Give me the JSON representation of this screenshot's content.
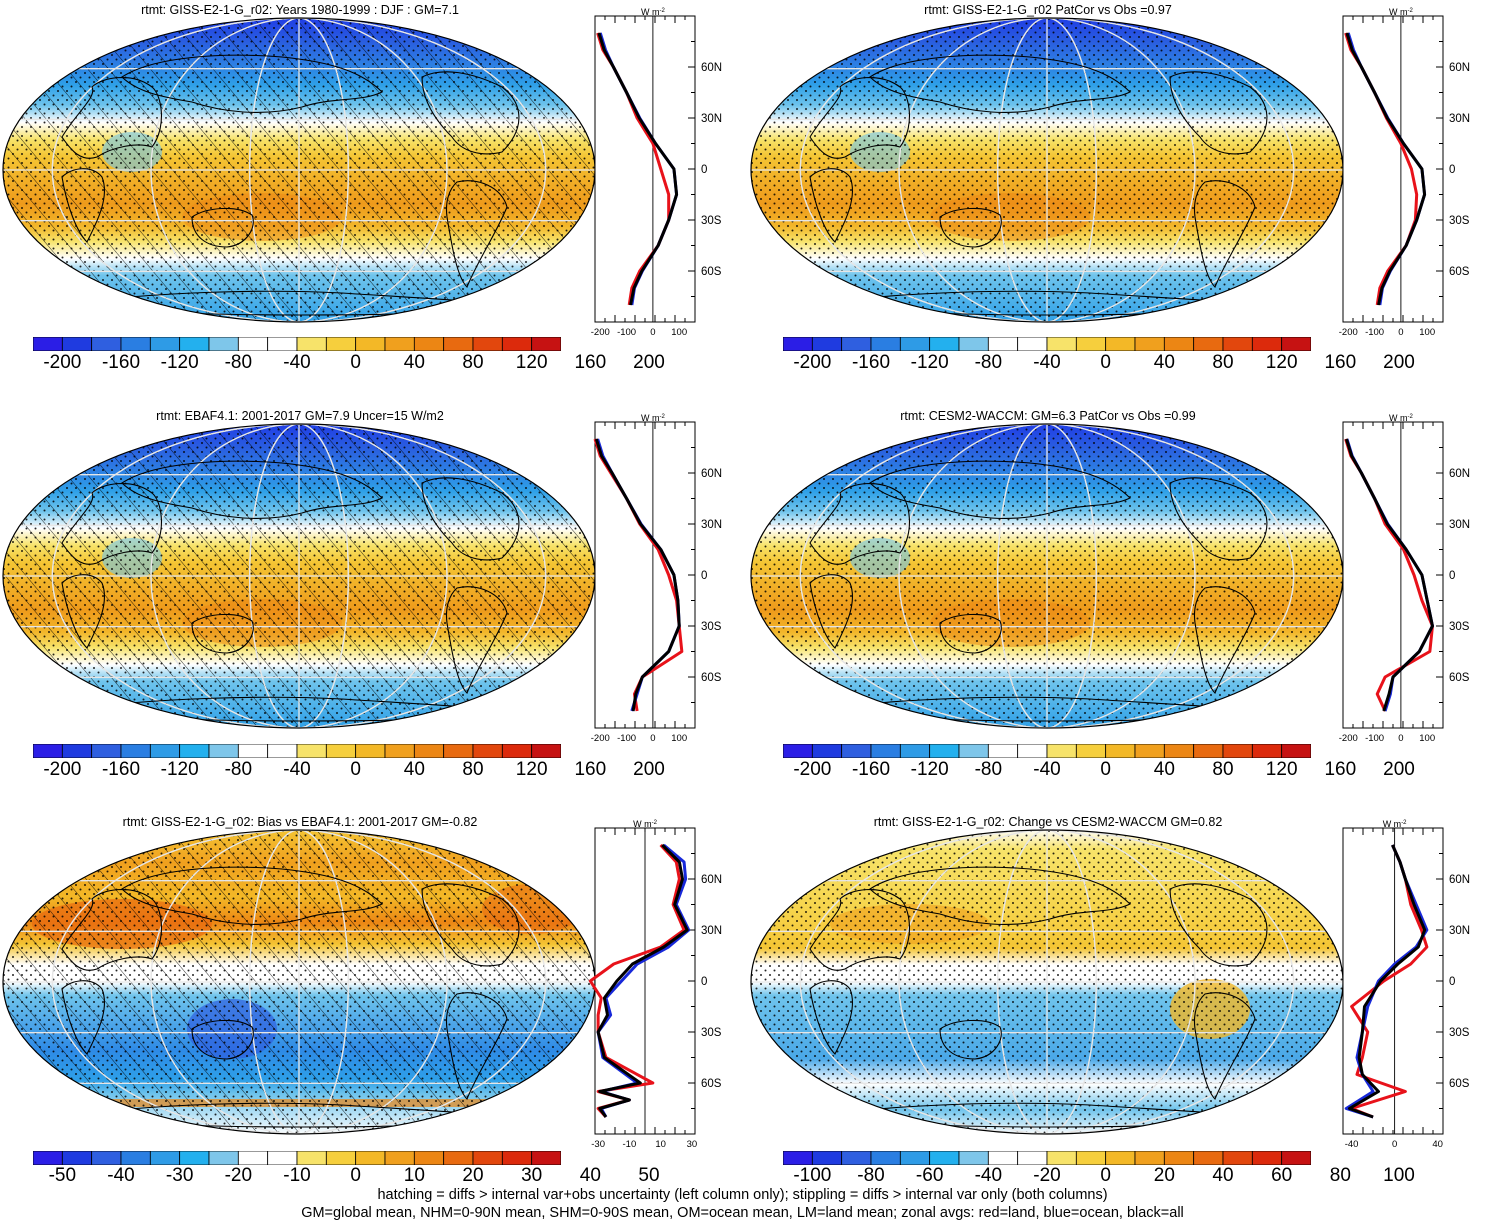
{
  "panels": [
    {
      "id": "p1",
      "title": "rtmt: GISS-E2-1-G_r02: Years 1980-1999 : DJF : GM=7.1",
      "map_kind": "clim",
      "hatching": true,
      "stipple": "dense",
      "profile_unit": "W m",
      "profile_xticks": [
        "-200",
        "-100",
        "0",
        "100"
      ],
      "profile_yticks": [
        "60N",
        "30N",
        "0",
        "30S",
        "60S"
      ],
      "colorbar_labels": [
        "-200",
        "-160",
        "-120",
        "-80",
        "-40",
        "0",
        "40",
        "80",
        "120",
        "160",
        "200"
      ],
      "colorbar_palette": "full"
    },
    {
      "id": "p2",
      "title": "rtmt: GISS-E2-1-G_r02 PatCor vs Obs =0.97",
      "map_kind": "clim",
      "hatching": false,
      "stipple": "dense",
      "profile_unit": "W m",
      "profile_xticks": [
        "-200",
        "-100",
        "0",
        "100"
      ],
      "profile_yticks": [
        "60N",
        "30N",
        "0",
        "30S",
        "60S"
      ],
      "colorbar_labels": [
        "-200",
        "-160",
        "-120",
        "-80",
        "-40",
        "0",
        "40",
        "80",
        "120",
        "160",
        "200"
      ],
      "colorbar_palette": "full"
    },
    {
      "id": "p3",
      "title": "rtmt: EBAF4.1: 2001-2017 GM=7.9 Uncer=15 W/m2",
      "map_kind": "clim",
      "hatching": true,
      "stipple": "dense",
      "profile_unit": "W m",
      "profile_xticks": [
        "-200",
        "-100",
        "0",
        "100"
      ],
      "profile_yticks": [
        "60N",
        "30N",
        "0",
        "30S",
        "60S"
      ],
      "colorbar_labels": [
        "-200",
        "-160",
        "-120",
        "-80",
        "-40",
        "0",
        "40",
        "80",
        "120",
        "160",
        "200"
      ],
      "colorbar_palette": "full"
    },
    {
      "id": "p4",
      "title": "rtmt: CESM2-WACCM: GM=6.3 PatCor vs Obs =0.99",
      "map_kind": "clim",
      "hatching": false,
      "stipple": "dense",
      "profile_unit": "W m",
      "profile_xticks": [
        "-200",
        "-100",
        "0",
        "100"
      ],
      "profile_yticks": [
        "60N",
        "30N",
        "0",
        "30S",
        "60S"
      ],
      "colorbar_labels": [
        "-200",
        "-160",
        "-120",
        "-80",
        "-40",
        "0",
        "40",
        "80",
        "120",
        "160",
        "200"
      ],
      "colorbar_palette": "full"
    },
    {
      "id": "p5",
      "title": "rtmt: GISS-E2-1-G_r02: Bias vs EBAF4.1: 2001-2017 GM=-0.82",
      "map_kind": "bias",
      "hatching": true,
      "stipple": "dense",
      "profile_unit": "W m",
      "profile_xticks": [
        "-30",
        "-10",
        "10",
        "30"
      ],
      "profile_yticks": [
        "60N",
        "30N",
        "0",
        "30S",
        "60S"
      ],
      "colorbar_labels": [
        "-50",
        "-40",
        "-30",
        "-20",
        "-10",
        "0",
        "10",
        "20",
        "30",
        "40",
        "50"
      ],
      "colorbar_palette": "full"
    },
    {
      "id": "p6",
      "title": "rtmt: GISS-E2-1-G_r02: Change vs CESM2-WACCM GM=0.82",
      "map_kind": "change",
      "hatching": false,
      "stipple": "dense",
      "profile_unit": "W m",
      "profile_xticks": [
        "-40",
        "0",
        "40"
      ],
      "profile_yticks": [
        "60N",
        "30N",
        "0",
        "30S",
        "60S"
      ],
      "colorbar_labels": [
        "-100",
        "-80",
        "-60",
        "-40",
        "-20",
        "0",
        "20",
        "40",
        "60",
        "80",
        "100"
      ],
      "colorbar_palette": "full"
    }
  ],
  "colorbar_colors": [
    "#2b1ee6",
    "#1f3be0",
    "#2f5fe0",
    "#2a7ee2",
    "#2e9be6",
    "#23b0ee",
    "#7ec6ea",
    "#ffffff",
    "#ffffff",
    "#f7e36a",
    "#f6cf3d",
    "#f3b827",
    "#f0a01e",
    "#ec8614",
    "#e86a10",
    "#e2470d",
    "#dc2a0c",
    "#c61212"
  ],
  "chart_data": [
    {
      "type": "heatmap",
      "title": "rtmt: GISS-E2-1-G_r02: Years 1980-1999 : DJF : GM=7.1",
      "colorbar_range": [
        -200,
        200
      ],
      "zonal_profile": {
        "lat": [
          80,
          70,
          60,
          45,
          30,
          15,
          0,
          -15,
          -30,
          -45,
          -60,
          -70,
          -80
        ],
        "series": [
          {
            "name": "red",
            "values": [
              -210,
              -190,
              -150,
              -100,
              -60,
              0,
              30,
              60,
              60,
              20,
              -50,
              -80,
              -90
            ]
          },
          {
            "name": "blue",
            "values": [
              -200,
              -180,
              -150,
              -100,
              -50,
              10,
              80,
              90,
              60,
              20,
              -40,
              -70,
              -80
            ]
          },
          {
            "name": "black",
            "values": [
              -205,
              -185,
              -150,
              -100,
              -52,
              10,
              80,
              90,
              60,
              20,
              -42,
              -72,
              -85
            ]
          }
        ]
      }
    },
    {
      "type": "heatmap",
      "title": "rtmt: GISS-E2-1-G_r02 PatCor vs Obs =0.97",
      "colorbar_range": [
        -200,
        200
      ],
      "zonal_profile": {
        "lat": [
          80,
          70,
          60,
          45,
          30,
          15,
          0,
          -15,
          -30,
          -45,
          -60,
          -70,
          -80
        ],
        "series": [
          {
            "name": "red",
            "values": [
              -210,
              -190,
              -150,
              -100,
              -55,
              0,
              40,
              60,
              55,
              20,
              -50,
              -80,
              -90
            ]
          },
          {
            "name": "blue",
            "values": [
              -200,
              -180,
              -150,
              -100,
              -50,
              10,
              80,
              90,
              60,
              20,
              -40,
              -70,
              -80
            ]
          },
          {
            "name": "black",
            "values": [
              -205,
              -185,
              -150,
              -100,
              -52,
              10,
              80,
              90,
              60,
              20,
              -42,
              -72,
              -85
            ]
          }
        ]
      }
    },
    {
      "type": "heatmap",
      "title": "rtmt: EBAF4.1: 2001-2017 GM=7.9 Uncer=15 W/m2",
      "colorbar_range": [
        -200,
        200
      ],
      "zonal_profile": {
        "lat": [
          80,
          70,
          60,
          45,
          30,
          15,
          0,
          -15,
          -30,
          -45,
          -60,
          -70,
          -80
        ],
        "series": [
          {
            "name": "red",
            "values": [
              -220,
              -200,
              -160,
              -100,
              -50,
              20,
              60,
              90,
              100,
              110,
              -40,
              -70,
              -60
            ]
          },
          {
            "name": "blue",
            "values": [
              -210,
              -190,
              -155,
              -100,
              -45,
              30,
              80,
              95,
              100,
              60,
              -40,
              -60,
              -80
            ]
          },
          {
            "name": "black",
            "values": [
              -215,
              -195,
              -155,
              -100,
              -47,
              30,
              80,
              95,
              100,
              60,
              -40,
              -65,
              -75
            ]
          }
        ]
      }
    },
    {
      "type": "heatmap",
      "title": "rtmt: CESM2-WACCM: GM=6.3 PatCor vs Obs =0.99",
      "colorbar_range": [
        -200,
        200
      ],
      "zonal_profile": {
        "lat": [
          80,
          70,
          60,
          45,
          30,
          15,
          0,
          -15,
          -30,
          -45,
          -60,
          -70,
          -80
        ],
        "series": [
          {
            "name": "red",
            "values": [
              -210,
              -190,
              -150,
              -100,
              -60,
              10,
              50,
              80,
              120,
              110,
              -60,
              -90,
              -60
            ]
          },
          {
            "name": "blue",
            "values": [
              -205,
              -185,
              -150,
              -100,
              -50,
              20,
              80,
              100,
              120,
              70,
              -30,
              -40,
              -60
            ]
          },
          {
            "name": "black",
            "values": [
              -207,
              -187,
              -150,
              -100,
              -52,
              20,
              80,
              100,
              120,
              70,
              -30,
              -45,
              -65
            ]
          }
        ]
      }
    },
    {
      "type": "heatmap",
      "title": "rtmt: GISS-E2-1-G_r02: Bias vs EBAF4.1: 2001-2017 GM=-0.82",
      "colorbar_range": [
        -50,
        50
      ],
      "zonal_profile": {
        "lat": [
          80,
          70,
          60,
          45,
          30,
          20,
          10,
          0,
          -10,
          -20,
          -30,
          -45,
          -60,
          -65,
          -70,
          -75,
          -80
        ],
        "series": [
          {
            "name": "red",
            "values": [
              10,
              20,
              22,
              18,
              25,
              10,
              -20,
              -35,
              -28,
              -30,
              -30,
              -25,
              5,
              -30,
              -10,
              -30,
              -25
            ]
          },
          {
            "name": "blue",
            "values": [
              12,
              25,
              26,
              20,
              28,
              15,
              -5,
              -15,
              -25,
              -22,
              -30,
              -27,
              -5,
              -28,
              -10,
              -28,
              -25
            ]
          },
          {
            "name": "black",
            "values": [
              11,
              22,
              24,
              19,
              27,
              12,
              -8,
              -18,
              -26,
              -24,
              -30,
              -26,
              -3,
              -29,
              -10,
              -29,
              -25
            ]
          }
        ]
      }
    },
    {
      "type": "heatmap",
      "title": "rtmt: GISS-E2-1-G_r02: Change vs CESM2-WACCM GM=0.82",
      "colorbar_range": [
        -100,
        100
      ],
      "zonal_profile": {
        "lat": [
          80,
          70,
          60,
          45,
          30,
          20,
          10,
          0,
          -15,
          -30,
          -45,
          -55,
          -65,
          -75,
          -80
        ],
        "series": [
          {
            "name": "red",
            "values": [
              -2,
              5,
              10,
              15,
              25,
              30,
              15,
              -10,
              -40,
              -25,
              -30,
              -35,
              10,
              -40,
              -20
            ]
          },
          {
            "name": "blue",
            "values": [
              -2,
              5,
              10,
              20,
              30,
              20,
              0,
              -15,
              -25,
              -30,
              -35,
              -30,
              -20,
              -45,
              -20
            ]
          },
          {
            "name": "black",
            "values": [
              -2,
              5,
              10,
              18,
              28,
              22,
              3,
              -13,
              -28,
              -30,
              -33,
              -30,
              -15,
              -42,
              -20
            ]
          }
        ]
      }
    }
  ],
  "footer": {
    "line1": "hatching = diffs > internal var+obs uncertainty (left column only); stippling = diffs > internal var only (both columns)",
    "line2": "GM=global mean, NHM=0-90N mean, SHM=0-90S mean, OM=ocean mean, LM=land mean; zonal avgs: red=land, blue=ocean, black=all"
  }
}
